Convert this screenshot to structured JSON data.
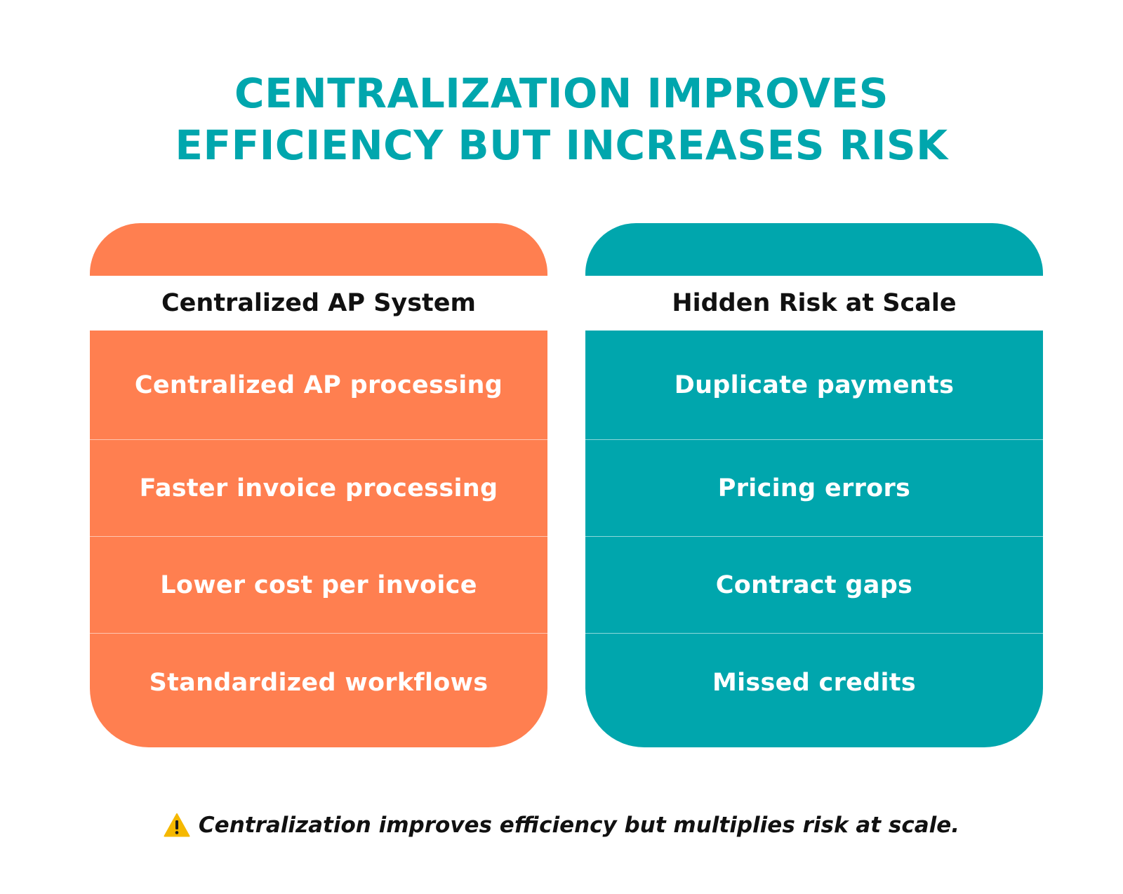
{
  "title": {
    "line1": "CENTRALIZATION IMPROVES",
    "line2": "EFFICIENCY BUT INCREASES RISK"
  },
  "colors": {
    "title": "#00a6ad",
    "left_accent": "#ff7f50",
    "right_accent": "#00a6ad",
    "warning": "#f5b800"
  },
  "columns": [
    {
      "heading": "Centralized AP System",
      "items": [
        "Centralized AP processing",
        "Faster invoice processing",
        "Lower cost per invoice",
        "Standardized workflows"
      ]
    },
    {
      "heading": "Hidden Risk at Scale",
      "items": [
        "Duplicate payments",
        "Pricing errors",
        "Contract gaps",
        "Missed credits"
      ]
    }
  ],
  "footer": {
    "icon": "warning-icon",
    "text": "Centralization improves efficiency but multiplies risk at scale."
  }
}
